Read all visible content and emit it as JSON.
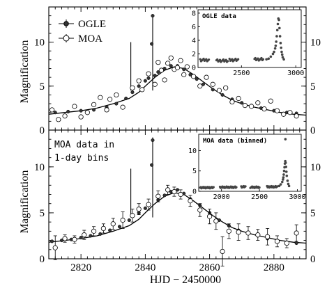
{
  "figure": {
    "xlabel": "HJD − 2450000",
    "ylabel": "Magnification"
  },
  "chart_data": [
    {
      "panel": "top",
      "type": "scatter",
      "xlim": [
        2810,
        2890
      ],
      "ylim": [
        0,
        14
      ],
      "xticks": [
        2820,
        2840,
        2860,
        2880
      ],
      "yticks": [
        0,
        5,
        10
      ],
      "ytick_labels": [
        "0",
        "5",
        "10"
      ],
      "legend": [
        "OGLE",
        "MOA"
      ],
      "series": [
        {
          "name": "OGLE",
          "marker": "filled-circle",
          "x": [
            2812,
            2816,
            2820,
            2824,
            2828,
            2831,
            2834,
            2836,
            2838,
            2840,
            2841,
            2842,
            2842.3,
            2843,
            2844,
            2846,
            2848,
            2850,
            2852,
            2854,
            2856,
            2858,
            2861,
            2864,
            2867,
            2870,
            2873,
            2876,
            2880,
            2884,
            2887
          ],
          "y": [
            2.0,
            2.1,
            2.2,
            2.3,
            2.6,
            3.0,
            3.6,
            4.3,
            5.0,
            5.6,
            5.9,
            9.8,
            13.0,
            6.2,
            6.6,
            7.0,
            7.3,
            7.3,
            6.9,
            6.3,
            5.8,
            5.2,
            4.6,
            4.0,
            3.5,
            3.1,
            2.8,
            2.5,
            2.2,
            2.0,
            1.9
          ]
        },
        {
          "name": "MOA",
          "marker": "open-circle",
          "x": [
            2811,
            2813,
            2815,
            2818,
            2820,
            2822,
            2824,
            2826,
            2828,
            2829,
            2831,
            2833,
            2836,
            2838,
            2839,
            2841,
            2843,
            2844,
            2845,
            2846,
            2847,
            2848,
            2849,
            2850,
            2851,
            2852,
            2853,
            2855,
            2857,
            2859,
            2861,
            2863,
            2865,
            2867,
            2869,
            2871,
            2873,
            2875,
            2877,
            2879,
            2881,
            2883,
            2885,
            2887
          ],
          "y": [
            2.3,
            1.2,
            1.6,
            2.7,
            1.5,
            2.0,
            2.9,
            3.7,
            2.3,
            3.5,
            4.0,
            2.6,
            4.8,
            5.6,
            4.6,
            6.4,
            5.2,
            7.7,
            6.8,
            5.7,
            7.6,
            8.2,
            6.9,
            7.1,
            7.9,
            6.3,
            7.2,
            6.1,
            5.0,
            6.0,
            5.2,
            4.5,
            4.8,
            3.2,
            3.6,
            2.8,
            2.7,
            3.1,
            2.4,
            3.3,
            2.2,
            1.8,
            2.0,
            1.6
          ]
        }
      ],
      "model_curve": {
        "x": [
          2810,
          2815,
          2820,
          2825,
          2830,
          2835,
          2838,
          2840,
          2843,
          2846,
          2849,
          2852,
          2855,
          2858,
          2861,
          2864,
          2867,
          2870,
          2874,
          2878,
          2882,
          2886,
          2890
        ],
        "y": [
          1.8,
          2.0,
          2.2,
          2.5,
          3.0,
          3.6,
          4.3,
          5.0,
          6.0,
          6.8,
          7.2,
          7.0,
          6.3,
          5.5,
          4.7,
          4.0,
          3.4,
          3.0,
          2.6,
          2.3,
          2.0,
          1.8,
          1.7
        ]
      },
      "spikes": [
        {
          "x": 2835.5,
          "y": 10.0
        },
        {
          "x": 2842.3,
          "y": 13.0
        }
      ],
      "inset": {
        "title": "OGLE data",
        "xlim": [
          2100,
          3050
        ],
        "ylim": [
          0,
          8.5
        ],
        "xticks": [
          2500,
          3000
        ],
        "yticks": [
          0,
          2,
          4,
          6,
          8
        ],
        "groups": [
          {
            "x0": 2120,
            "x1": 2200,
            "y": 1.1
          },
          {
            "x0": 2270,
            "x1": 2380,
            "y": 1.0
          },
          {
            "x0": 2390,
            "x1": 2470,
            "y": 1.1
          },
          {
            "x0": 2620,
            "x1": 2700,
            "y": 1.2
          }
        ],
        "event": {
          "x": [
            2730,
            2750,
            2770,
            2790,
            2800,
            2810,
            2815,
            2820,
            2825,
            2830,
            2835,
            2840,
            2845,
            2850,
            2855,
            2860,
            2865,
            2870,
            2875,
            2880,
            2890
          ],
          "y": [
            1.2,
            1.3,
            1.6,
            2.0,
            2.3,
            2.8,
            3.2,
            3.8,
            4.6,
            5.5,
            6.4,
            7.2,
            7.0,
            5.8,
            4.6,
            3.6,
            2.9,
            2.3,
            1.9,
            1.5,
            1.2
          ]
        }
      }
    },
    {
      "panel": "bottom",
      "type": "scatter",
      "annotation": "MOA data in 1-day bins",
      "xlim": [
        2810,
        2890
      ],
      "ylim": [
        0,
        14
      ],
      "xticks": [
        2820,
        2840,
        2860,
        2880
      ],
      "yticks": [
        0,
        5,
        10
      ],
      "ytick_labels": [
        "0",
        "5",
        "10"
      ],
      "series": [
        {
          "name": "OGLE",
          "marker": "filled-circle",
          "x": [
            2811,
            2814,
            2817,
            2820,
            2823,
            2826,
            2829,
            2832,
            2835,
            2838,
            2840,
            2842,
            2842.3,
            2844,
            2846,
            2848,
            2850,
            2852,
            2854,
            2857,
            2860,
            2863,
            2866,
            2869,
            2872,
            2875,
            2878,
            2881,
            2884,
            2887
          ],
          "y": [
            1.9,
            2.0,
            2.1,
            2.3,
            2.5,
            2.7,
            3.1,
            3.5,
            4.2,
            5.0,
            5.5,
            10.2,
            12.9,
            6.4,
            6.9,
            7.3,
            7.5,
            7.1,
            6.5,
            5.8,
            5.0,
            4.2,
            3.6,
            3.1,
            2.8,
            2.5,
            2.2,
            2.0,
            1.8,
            1.7
          ]
        },
        {
          "name": "MOA (binned)",
          "marker": "open-circle",
          "x": [
            2812,
            2815,
            2818,
            2821,
            2824,
            2827,
            2830,
            2833,
            2836,
            2838,
            2841,
            2844,
            2847,
            2849,
            2851,
            2854,
            2857,
            2860,
            2862,
            2864,
            2866,
            2869,
            2872,
            2875,
            2878,
            2881,
            2884,
            2887
          ],
          "y": [
            1.2,
            2.2,
            2.1,
            2.6,
            3.0,
            3.3,
            3.8,
            4.2,
            4.7,
            5.4,
            5.9,
            6.8,
            7.5,
            7.3,
            7.0,
            6.3,
            5.3,
            4.6,
            4.1,
            0.8,
            3.0,
            2.9,
            2.8,
            2.6,
            2.4,
            1.9,
            1.7,
            2.8
          ],
          "err": [
            1.3,
            0.4,
            0.4,
            0.5,
            0.5,
            0.5,
            0.6,
            0.9,
            0.7,
            0.6,
            0.6,
            0.6,
            0.5,
            0.5,
            0.5,
            0.6,
            0.7,
            0.8,
            0.9,
            1.6,
            0.8,
            0.9,
            0.7,
            0.6,
            0.9,
            0.6,
            0.5,
            0.9
          ]
        }
      ],
      "model_curve": {
        "x": [
          2810,
          2815,
          2820,
          2825,
          2830,
          2835,
          2838,
          2840,
          2843,
          2846,
          2849,
          2852,
          2855,
          2858,
          2861,
          2864,
          2867,
          2870,
          2874,
          2878,
          2882,
          2886,
          2890
        ],
        "y": [
          1.8,
          2.0,
          2.2,
          2.5,
          3.0,
          3.6,
          4.3,
          5.0,
          6.0,
          6.8,
          7.2,
          7.0,
          6.3,
          5.5,
          4.7,
          4.0,
          3.4,
          3.0,
          2.6,
          2.3,
          2.0,
          1.8,
          1.7
        ]
      },
      "spikes": [
        {
          "x": 2835.5,
          "y": 9.8
        },
        {
          "x": 2842.3,
          "y": 13.2
        }
      ],
      "inset": {
        "title": "MOA data (binned)",
        "xlim": [
          1700,
          3050
        ],
        "ylim": [
          0,
          14
        ],
        "xticks": [
          2000,
          2500,
          3000
        ],
        "yticks": [
          0,
          5,
          10
        ],
        "groups": [
          {
            "x0": 1720,
            "x1": 1900,
            "y": 0.9
          },
          {
            "x0": 1980,
            "x1": 2200,
            "y": 1.0
          },
          {
            "x0": 2260,
            "x1": 2320,
            "y": 1.1
          },
          {
            "x0": 2380,
            "x1": 2500,
            "y": 1.0
          },
          {
            "x0": 2600,
            "x1": 2740,
            "y": 1.1
          }
        ],
        "event": {
          "x": [
            2760,
            2780,
            2800,
            2810,
            2815,
            2820,
            2825,
            2830,
            2835,
            2840,
            2842,
            2845,
            2850,
            2855,
            2860,
            2870,
            2880,
            2890
          ],
          "y": [
            1.3,
            1.7,
            2.3,
            2.9,
            3.4,
            4.1,
            5.0,
            5.9,
            6.8,
            7.4,
            12.8,
            7.0,
            6.0,
            4.8,
            3.8,
            2.6,
            1.8,
            1.3
          ]
        }
      }
    }
  ]
}
